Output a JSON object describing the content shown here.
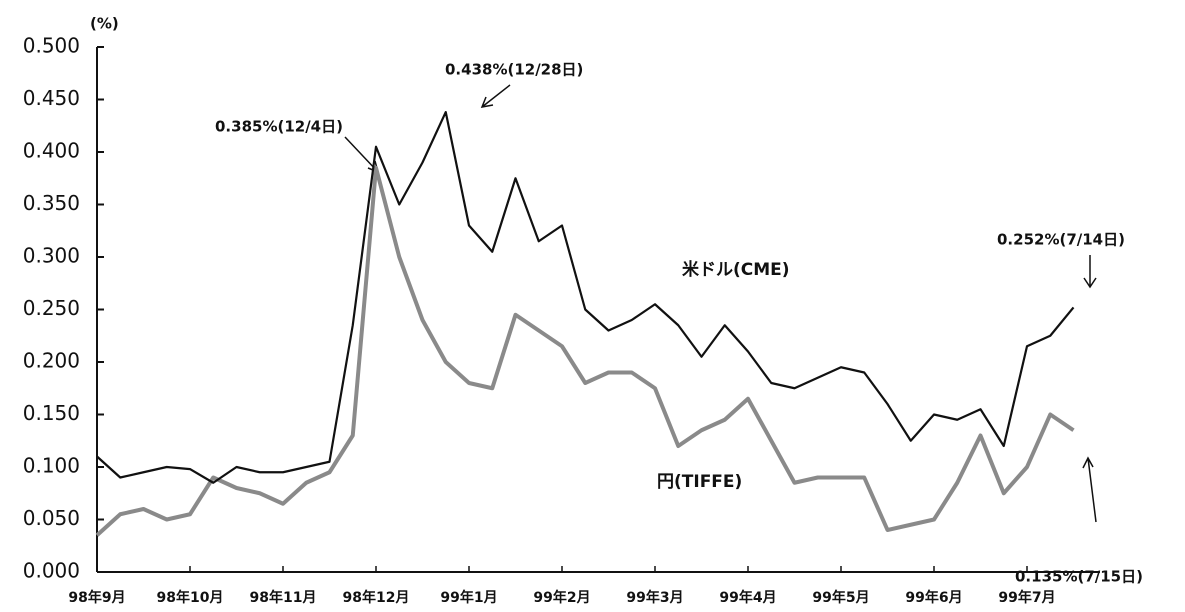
{
  "chart_data": {
    "type": "line",
    "y_unit": "(%)",
    "categories": [
      "98年9月",
      null,
      null,
      null,
      "98年10月",
      null,
      null,
      null,
      "98年11月",
      null,
      null,
      null,
      "98年12月",
      null,
      null,
      null,
      "99年1月",
      null,
      null,
      null,
      "99年2月",
      null,
      null,
      null,
      "99年3月",
      null,
      null,
      null,
      "99年4月",
      null,
      null,
      null,
      "99年5月",
      null,
      null,
      null,
      "99年6月",
      null,
      null,
      null,
      "99年7月",
      null,
      null
    ],
    "series": [
      {
        "name": "米ドル(CME)",
        "color": "#111111",
        "values": [
          0.11,
          0.09,
          0.095,
          0.1,
          0.098,
          0.085,
          0.1,
          0.095,
          0.095,
          0.1,
          0.105,
          0.235,
          0.405,
          0.35,
          0.39,
          0.438,
          0.33,
          0.305,
          0.375,
          0.315,
          0.33,
          0.25,
          0.23,
          0.24,
          0.255,
          0.235,
          0.205,
          0.235,
          0.21,
          0.18,
          0.175,
          0.185,
          0.195,
          0.19,
          0.16,
          0.125,
          0.15,
          0.145,
          0.155,
          0.12,
          0.215,
          0.225,
          0.252
        ]
      },
      {
        "name": "円(TIFFE)",
        "color": "#8a8a8a",
        "values": [
          0.035,
          0.055,
          0.06,
          0.05,
          0.055,
          0.09,
          0.08,
          0.075,
          0.065,
          0.085,
          0.095,
          0.13,
          0.385,
          0.3,
          0.24,
          0.2,
          0.18,
          0.175,
          0.245,
          0.23,
          0.215,
          0.18,
          0.19,
          0.19,
          0.175,
          0.12,
          0.135,
          0.145,
          0.165,
          0.125,
          0.085,
          0.09,
          0.09,
          0.09,
          0.04,
          0.045,
          0.05,
          0.085,
          0.13,
          0.075,
          0.1,
          0.15,
          0.135
        ]
      }
    ],
    "ylim": [
      0,
      0.5
    ],
    "yticks": [
      {
        "value": 0,
        "label": "0.000"
      },
      {
        "value": 0.05,
        "label": "0.050"
      },
      {
        "value": 0.1,
        "label": "0.100"
      },
      {
        "value": 0.15,
        "label": "0.150"
      },
      {
        "value": 0.2,
        "label": "0.200"
      },
      {
        "value": 0.25,
        "label": "0.250"
      },
      {
        "value": 0.3,
        "label": "0.300"
      },
      {
        "value": 0.35,
        "label": "0.350"
      },
      {
        "value": 0.4,
        "label": "0.400"
      },
      {
        "value": 0.45,
        "label": "0.450"
      },
      {
        "value": 0.5,
        "label": "0.500"
      }
    ],
    "annotations": [
      "0.385%(12/4日)",
      "0.438%(12/28日)",
      "0.252%(7/14日)",
      "0.135%(7/15日)"
    ],
    "grid": false
  }
}
